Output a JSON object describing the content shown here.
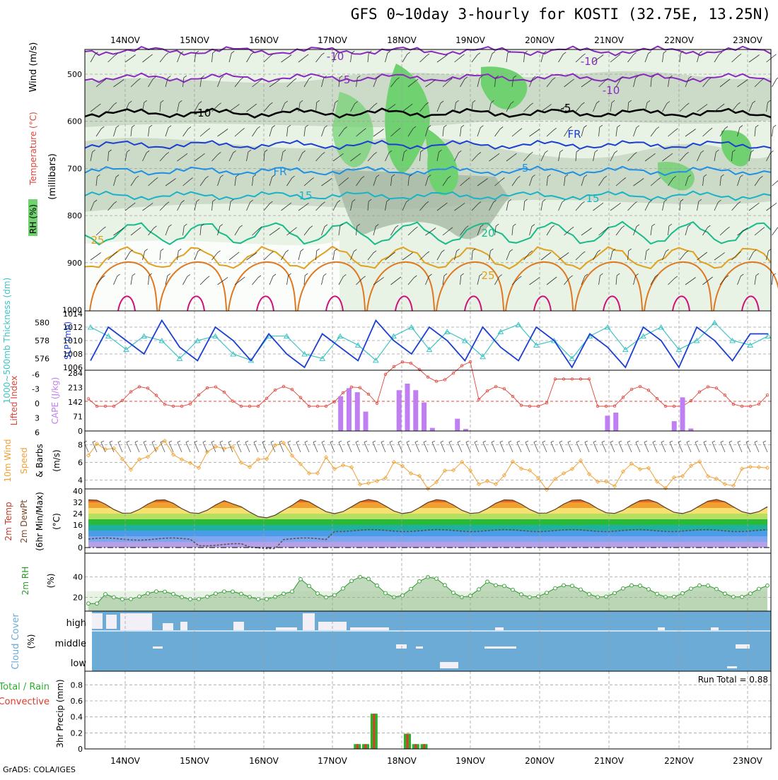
{
  "header": {
    "title": "GFS 0~10day 3-hourly for KOSTI (32.75E, 13.25N)",
    "credit": "GrADS: COLA/IGES"
  },
  "dates": [
    "14NOV",
    "15NOV",
    "16NOV",
    "17NOV",
    "18NOV",
    "19NOV",
    "20NOV",
    "21NOV",
    "22NOV",
    "23NOV"
  ],
  "panels": {
    "upper_air": {
      "label_rh": "RH (%)",
      "label_temp": "Temperature (°C)",
      "label_wind": "Wind (m/s)",
      "label_unit": "(millibars)",
      "y_ticks": [
        500,
        600,
        700,
        800,
        900,
        1000
      ],
      "isotherm_labels": [
        "-10",
        "-5",
        "FR",
        "-5",
        "-10",
        "-15",
        "-20",
        "-25"
      ],
      "contour_labels": [
        "-10",
        "-5",
        "-10",
        "-5",
        "FR",
        "FR",
        "-5",
        "-10",
        "-10",
        "15",
        "15",
        "20",
        "25",
        "25"
      ]
    },
    "thickness_slp": {
      "label_thickness": "1000~500mb Thickness (dm)",
      "label_slp": "SLP (mb)",
      "thickness_ticks": [
        "576",
        "578",
        "580"
      ],
      "slp_ticks": [
        "1006",
        "1008",
        "1010",
        "1012",
        "1014"
      ]
    },
    "cape_li": {
      "label_li": "Lifted Index",
      "label_cape": "CAPE (J/kg)",
      "li_ticks": [
        "-6",
        "-3",
        "0",
        "3",
        "6"
      ],
      "cape_ticks": [
        "0",
        "71",
        "142",
        "213",
        "284"
      ]
    },
    "wind10m": {
      "label_a": "10m Wind",
      "label_b": "Speed",
      "label_c": "& Barbs",
      "unit": "(m/s)",
      "y_ticks": [
        "4",
        "6",
        "8"
      ]
    },
    "temp2m": {
      "label_a": "2m Temp",
      "label_b": "2m DewPt",
      "label_c": "(6hr Min/Max)",
      "unit": "(°C)",
      "y_ticks": [
        "0",
        "8",
        "16",
        "24",
        "32",
        "40"
      ]
    },
    "rh2m": {
      "label": "2m RH",
      "unit": "(%)",
      "y_ticks": [
        "20",
        "40"
      ]
    },
    "cloud": {
      "label": "Cloud Cover",
      "unit": "(%)",
      "levels": [
        "high",
        "middle",
        "low"
      ]
    },
    "precip": {
      "label_total": "Total / Rain",
      "label_conv": "Convective",
      "label_unit": "3hr Precip (mm)",
      "run_total": "Run Total = 0.88",
      "y_ticks": [
        "0",
        "0.2",
        "0.4",
        "0.6",
        "0.8"
      ]
    }
  },
  "colors": {
    "grid": "#a0a0a0",
    "rh_light": "#e8f3e6",
    "rh_mid": "#c9d7c4",
    "rh_dark": "#a6b9a4",
    "rh_green": "#6fd16f",
    "thickness": "#3cc4c4",
    "slp": "#1b3fd1",
    "cape": "#bf7ff2",
    "lifted_index": "#e0453b",
    "wind_speed": "#f0a030",
    "temp": "#5a3a2a",
    "rh2m": "#2a9a2a",
    "cloud": "#6babd6",
    "precip_total": "#2ab02a",
    "precip_conv": "#e03a2a"
  },
  "chart_data": [
    {
      "type": "line",
      "title": "1000~500mb Thickness (dm) / SLP (mb)",
      "x": [
        "13NOV18",
        "14NOV00",
        "14NOV06",
        "14NOV12",
        "14NOV18",
        "15NOV00",
        "15NOV06",
        "15NOV12",
        "15NOV18",
        "16NOV00",
        "16NOV06",
        "16NOV12",
        "16NOV18",
        "17NOV00",
        "17NOV06",
        "17NOV12",
        "17NOV18",
        "18NOV00",
        "18NOV06",
        "18NOV12",
        "18NOV18",
        "19NOV00",
        "19NOV06",
        "19NOV12",
        "19NOV18",
        "20NOV00",
        "20NOV06",
        "20NOV12",
        "20NOV18",
        "21NOV00",
        "21NOV06",
        "21NOV12",
        "21NOV18",
        "22NOV00",
        "22NOV06",
        "22NOV12",
        "22NOV18",
        "23NOV00",
        "23NOV06"
      ],
      "series": [
        {
          "name": "SLP",
          "axis": "right",
          "values": [
            1007,
            1012,
            1010,
            1008,
            1013,
            1009,
            1007,
            1012,
            1010,
            1007,
            1011,
            1008,
            1006,
            1011,
            1009,
            1007,
            1013,
            1010,
            1008,
            1012,
            1010,
            1007,
            1012,
            1009,
            1007,
            1012,
            1010,
            1006,
            1011,
            1009,
            1006,
            1012,
            1010,
            1006,
            1012,
            1010,
            1007,
            1011,
            1011
          ]
        },
        {
          "name": "Thickness",
          "axis": "left",
          "values": [
            579.5,
            578.5,
            577,
            578.5,
            578,
            576,
            578,
            578.5,
            576.5,
            575.8,
            578.5,
            578.5,
            576.5,
            576,
            578.5,
            577.5,
            575.8,
            578.5,
            579.5,
            577,
            579,
            578,
            576.2,
            579,
            579.8,
            577.5,
            578,
            576,
            578.5,
            579.5,
            577,
            578.5,
            579.5,
            577,
            578,
            580,
            578,
            577.5,
            578.5
          ]
        }
      ],
      "ylim_left": [
        575,
        581
      ],
      "ylim_right": [
        1006,
        1014
      ]
    },
    {
      "type": "bar",
      "title": "CAPE (J/kg) / Lifted Index",
      "x": [
        "17NOV12",
        "17NOV15",
        "17NOV18",
        "17NOV21",
        "18NOV09",
        "18NOV12",
        "18NOV15",
        "18NOV18",
        "18NOV21",
        "19NOV06",
        "19NOV09",
        "21NOV12",
        "21NOV15",
        "22NOV12",
        "22NOV15",
        "22NOV18"
      ],
      "series": [
        {
          "name": "CAPE",
          "values": [
            170,
            210,
            190,
            95,
            200,
            232,
            200,
            140,
            15,
            60,
            10,
            75,
            90,
            48,
            165,
            12
          ]
        }
      ],
      "ylim": [
        0,
        284
      ]
    },
    {
      "type": "bar",
      "title": "3hr Precip (mm)",
      "annotation": "Run Total = 0.88",
      "x": [
        "17NOV18",
        "17NOV21",
        "18NOV00",
        "18NOV12",
        "18NOV15",
        "18NOV18"
      ],
      "series": [
        {
          "name": "Total / Rain",
          "values": [
            0.06,
            0.06,
            0.44,
            0.19,
            0.06,
            0.06
          ]
        },
        {
          "name": "Convective",
          "values": [
            0.06,
            0.06,
            0.44,
            0.19,
            0.06,
            0.06
          ]
        }
      ],
      "ylim": [
        0,
        0.9
      ]
    }
  ]
}
